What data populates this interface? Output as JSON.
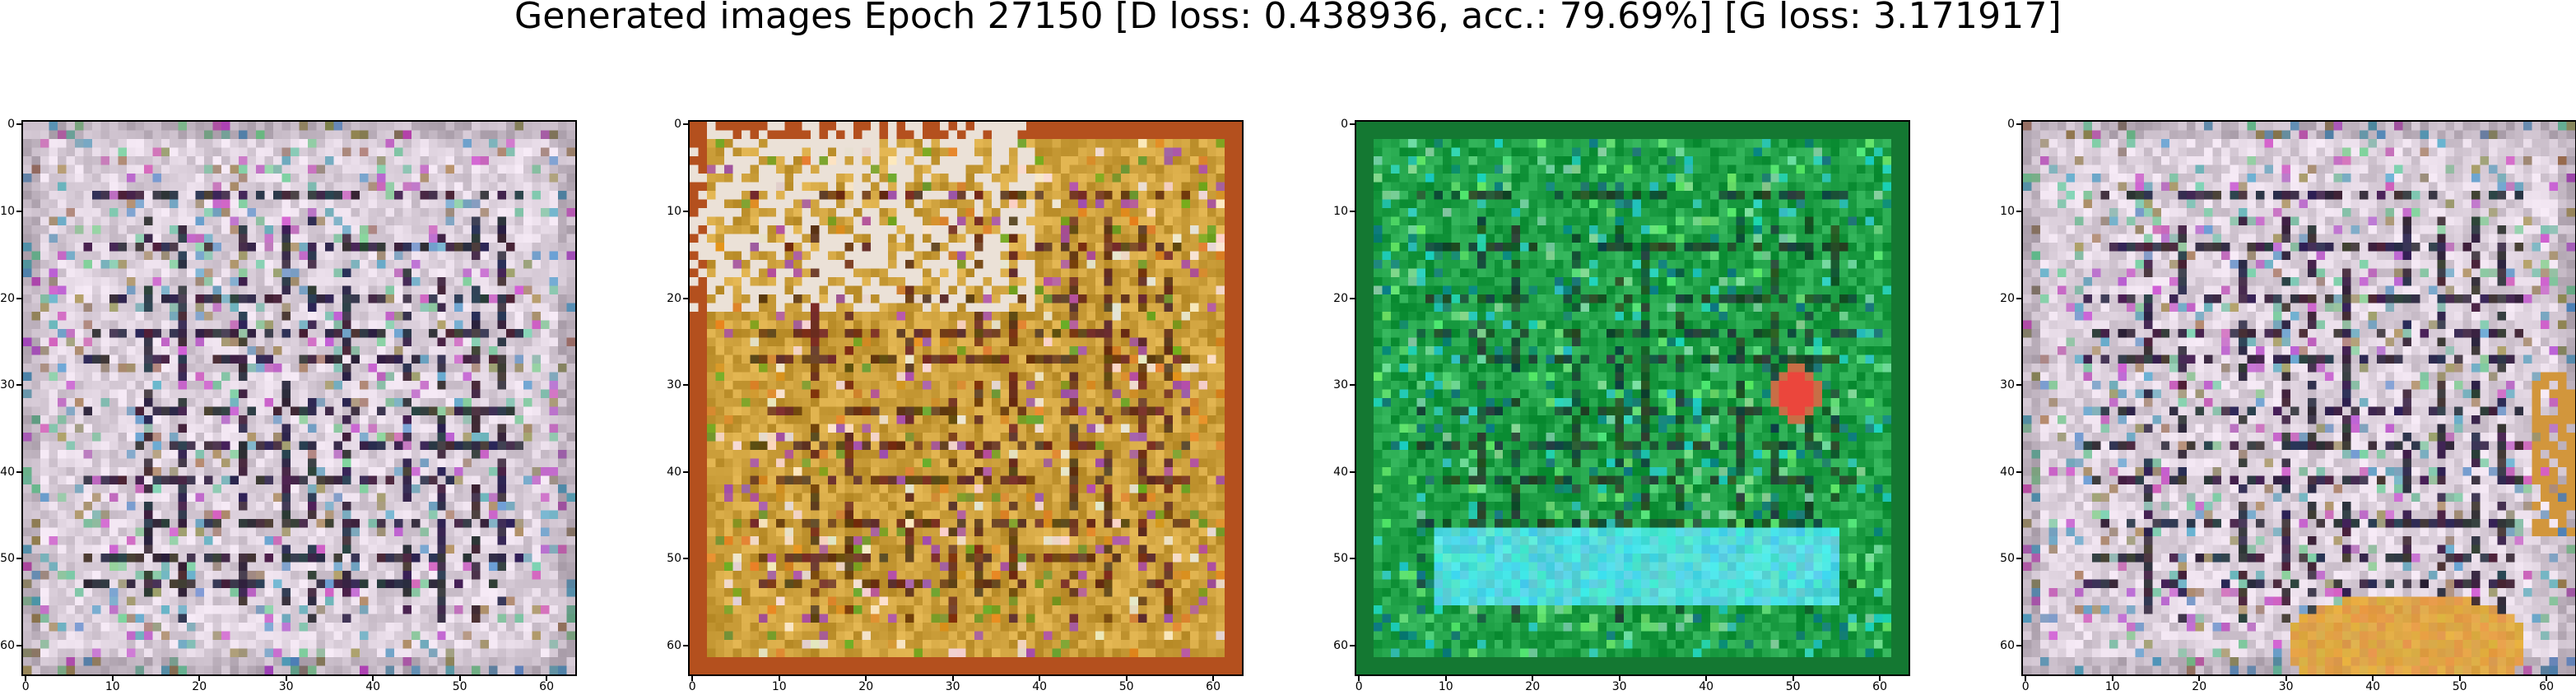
{
  "figure": {
    "title": "Generated images Epoch 27150 [D loss: 0.438936, acc.: 79.69%] [G loss: 3.171917]"
  },
  "axis": {
    "x_ticks": [
      "0",
      "10",
      "20",
      "30",
      "40",
      "50",
      "60"
    ],
    "y_ticks": [
      "0",
      "10",
      "20",
      "30",
      "40",
      "50",
      "60"
    ],
    "range": [
      0,
      63
    ]
  },
  "panels": [
    {
      "name": "generated-image-1",
      "palette": "pastel"
    },
    {
      "name": "generated-image-2",
      "palette": "golden"
    },
    {
      "name": "generated-image-3",
      "palette": "green"
    },
    {
      "name": "generated-image-4",
      "palette": "pastel-orange"
    }
  ]
}
